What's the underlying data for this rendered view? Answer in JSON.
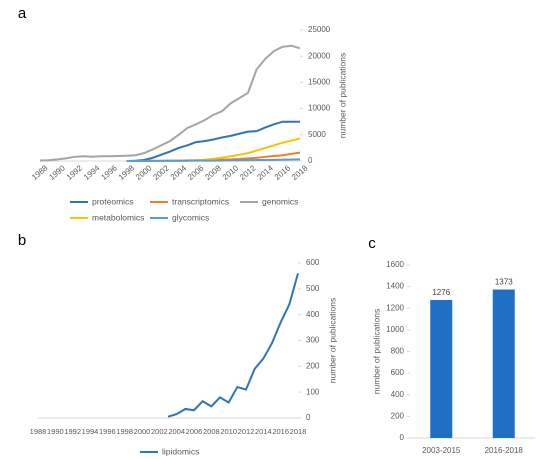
{
  "chart_data": [
    {
      "panel_label": "a",
      "type": "line",
      "x": [
        1988,
        1989,
        1990,
        1991,
        1992,
        1993,
        1994,
        1995,
        1996,
        1997,
        1998,
        1999,
        2000,
        2001,
        2002,
        2003,
        2004,
        2005,
        2006,
        2007,
        2008,
        2009,
        2010,
        2011,
        2012,
        2013,
        2014,
        2015,
        2016,
        2017,
        2018
      ],
      "xlim": [
        1988,
        2018
      ],
      "xticks": [
        1988,
        1990,
        1992,
        1994,
        1996,
        1998,
        2000,
        2002,
        2004,
        2006,
        2008,
        2010,
        2012,
        2014,
        2016,
        2018
      ],
      "ylim": [
        0,
        25000
      ],
      "yticks": [
        0,
        5000,
        10000,
        15000,
        20000,
        25000
      ],
      "y_axis_label": "number of publications",
      "legend": "bottom",
      "series": [
        {
          "name": "proteomics",
          "color": "#2e75b6",
          "values": [
            null,
            null,
            null,
            null,
            null,
            null,
            null,
            null,
            null,
            null,
            0,
            50,
            200,
            600,
            1200,
            1800,
            2500,
            3000,
            3600,
            3800,
            4100,
            4500,
            4800,
            5200,
            5600,
            5700,
            6400,
            7000,
            7500,
            7500,
            7500
          ]
        },
        {
          "name": "transcriptomics",
          "color": "#ed7d31",
          "values": [
            null,
            null,
            null,
            null,
            null,
            null,
            null,
            null,
            null,
            null,
            null,
            null,
            10,
            20,
            40,
            60,
            80,
            110,
            140,
            180,
            220,
            260,
            300,
            380,
            500,
            600,
            800,
            950,
            1100,
            1350,
            1600
          ]
        },
        {
          "name": "genomics",
          "color": "#a5a5a5",
          "values": [
            100,
            150,
            300,
            500,
            800,
            900,
            800,
            900,
            900,
            950,
            1000,
            1100,
            1500,
            2200,
            3000,
            3800,
            5000,
            6300,
            7000,
            7800,
            8800,
            9500,
            11000,
            12000,
            13000,
            17500,
            19500,
            21000,
            21800,
            22000,
            21500
          ]
        },
        {
          "name": "metabolomics",
          "color": "#ffc000",
          "values": [
            null,
            null,
            null,
            null,
            null,
            null,
            null,
            null,
            null,
            null,
            null,
            null,
            null,
            null,
            null,
            null,
            20,
            60,
            100,
            250,
            400,
            650,
            900,
            1200,
            1500,
            2000,
            2500,
            3000,
            3500,
            3900,
            4300
          ]
        },
        {
          "name": "glycomics",
          "color": "#5b9bd5",
          "values": [
            null,
            null,
            null,
            null,
            null,
            null,
            null,
            null,
            null,
            null,
            0,
            5,
            10,
            15,
            20,
            30,
            40,
            50,
            60,
            70,
            80,
            100,
            120,
            140,
            160,
            180,
            200,
            220,
            250,
            280,
            300
          ]
        }
      ]
    },
    {
      "panel_label": "b",
      "type": "line",
      "x": [
        2003,
        2004,
        2005,
        2006,
        2007,
        2008,
        2009,
        2010,
        2011,
        2012,
        2013,
        2014,
        2015,
        2016,
        2017,
        2018
      ],
      "xlim": [
        1988,
        2018
      ],
      "xticks": [
        1988,
        1990,
        1992,
        1994,
        1996,
        1998,
        2000,
        2002,
        2004,
        2006,
        2008,
        2010,
        2012,
        2014,
        2016,
        2018
      ],
      "ylim": [
        0,
        600
      ],
      "yticks": [
        0,
        100,
        200,
        300,
        400,
        500,
        600
      ],
      "y_axis_label": "number of publications",
      "legend": "bottom",
      "series": [
        {
          "name": "lipidomics",
          "color": "#2e75b6",
          "values": [
            5,
            15,
            35,
            30,
            65,
            45,
            80,
            60,
            120,
            110,
            190,
            230,
            290,
            370,
            440,
            560
          ]
        }
      ]
    },
    {
      "panel_label": "c",
      "type": "bar",
      "categories": [
        "2003-2015",
        "2016-2018"
      ],
      "values": [
        1276,
        1373
      ],
      "color": "#1f6fc5",
      "ylim": [
        0,
        1600
      ],
      "yticks": [
        0,
        200,
        400,
        600,
        800,
        1000,
        1200,
        1400,
        1600
      ],
      "y_axis_label": "number of publications"
    }
  ]
}
